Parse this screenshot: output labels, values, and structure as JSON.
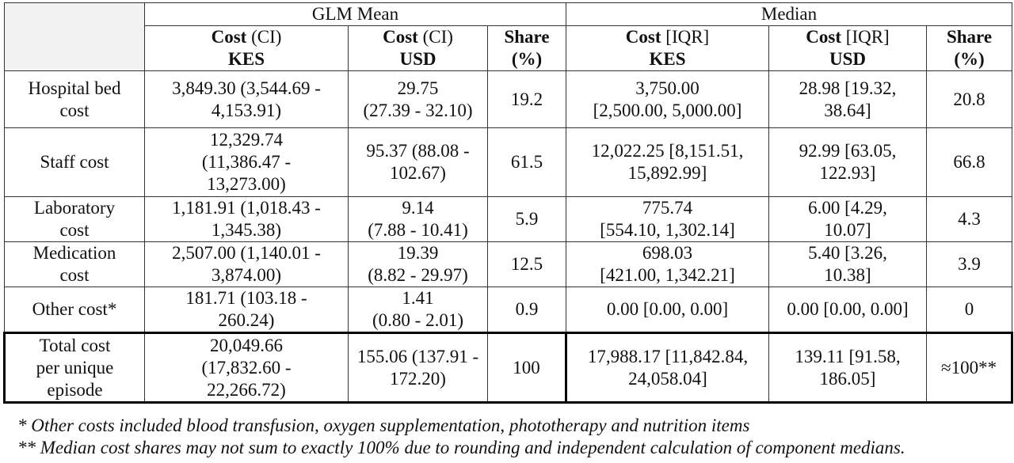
{
  "headers": {
    "group_glm": "GLM Mean",
    "group_median": "Median",
    "columns": [
      {
        "bold": "Cost",
        "normal": " (CI)",
        "unit": "KES"
      },
      {
        "bold": "Cost",
        "normal": " (CI)",
        "unit": "USD"
      },
      {
        "bold": "Share",
        "normal": "",
        "unit": "(%)"
      },
      {
        "bold": "Cost",
        "normal": " [IQR]",
        "unit": "KES"
      },
      {
        "bold": "Cost",
        "normal": " [IQR]",
        "unit": "USD"
      },
      {
        "bold": "Share",
        "normal": "",
        "unit": "(%)"
      }
    ]
  },
  "rows": [
    {
      "label_lines": [
        "Hospital bed",
        "cost"
      ],
      "glm_kes_lines": [
        "3,849.30 (3,544.69 -",
        "4,153.91)"
      ],
      "glm_usd_lines": [
        "29.75",
        "(27.39 - 32.10)"
      ],
      "glm_share": "19.2",
      "med_kes_lines": [
        "3,750.00",
        "[2,500.00, 5,000.00]"
      ],
      "med_usd_lines": [
        "28.98 [19.32,",
        "38.64]"
      ],
      "med_share": "20.8"
    },
    {
      "label_lines": [
        "Staff cost"
      ],
      "glm_kes_lines": [
        "12,329.74",
        "(11,386.47 -",
        "13,273.00)"
      ],
      "glm_usd_lines": [
        "95.37 (88.08 -",
        "102.67)"
      ],
      "glm_share": "61.5",
      "med_kes_lines": [
        "12,022.25 [8,151.51,",
        "15,892.99]"
      ],
      "med_usd_lines": [
        "92.99 [63.05,",
        "122.93]"
      ],
      "med_share": "66.8"
    },
    {
      "label_lines": [
        "Laboratory",
        "cost"
      ],
      "glm_kes_lines": [
        "1,181.91 (1,018.43 -",
        "1,345.38)"
      ],
      "glm_usd_lines": [
        "9.14",
        "(7.88 - 10.41)"
      ],
      "glm_share": "5.9",
      "med_kes_lines": [
        "775.74",
        "[554.10, 1,302.14]"
      ],
      "med_usd_lines": [
        "6.00 [4.29,",
        "10.07]"
      ],
      "med_share": "4.3"
    },
    {
      "label_lines": [
        "Medication",
        "cost"
      ],
      "glm_kes_lines": [
        "2,507.00 (1,140.01 -",
        "3,874.00)"
      ],
      "glm_usd_lines": [
        "19.39",
        "(8.82 - 29.97)"
      ],
      "glm_share": "12.5",
      "med_kes_lines": [
        "698.03",
        "[421.00, 1,342.21]"
      ],
      "med_usd_lines": [
        "5.40 [3.26,",
        "10.38]"
      ],
      "med_share": "3.9"
    },
    {
      "label_lines": [
        "Other cost*"
      ],
      "glm_kes_lines": [
        "181.71 (103.18 -",
        "260.24)"
      ],
      "glm_usd_lines": [
        "1.41",
        "(0.80 - 2.01)"
      ],
      "glm_share": "0.9",
      "med_kes_lines": [
        "0.00 [0.00, 0.00]"
      ],
      "med_usd_lines": [
        "0.00 [0.00, 0.00]"
      ],
      "med_share": "0"
    },
    {
      "label_lines": [
        "Total cost",
        "per unique",
        "episode"
      ],
      "glm_kes_lines": [
        "20,049.66",
        "(17,832.60 -",
        "22,266.72)"
      ],
      "glm_usd_lines": [
        "155.06 (137.91 -",
        "172.20)"
      ],
      "glm_share": "100",
      "med_kes_lines": [
        "17,988.17 [11,842.84,",
        "24,058.04]"
      ],
      "med_usd_lines": [
        "139.11 [91.58,",
        "186.05]"
      ],
      "med_share": "≈100**"
    }
  ],
  "footnotes": [
    "* Other costs included blood transfusion, oxygen supplementation, phototherapy and nutrition items",
    "** Median cost shares may not sum to exactly 100% due to rounding and independent calculation of component medians."
  ]
}
